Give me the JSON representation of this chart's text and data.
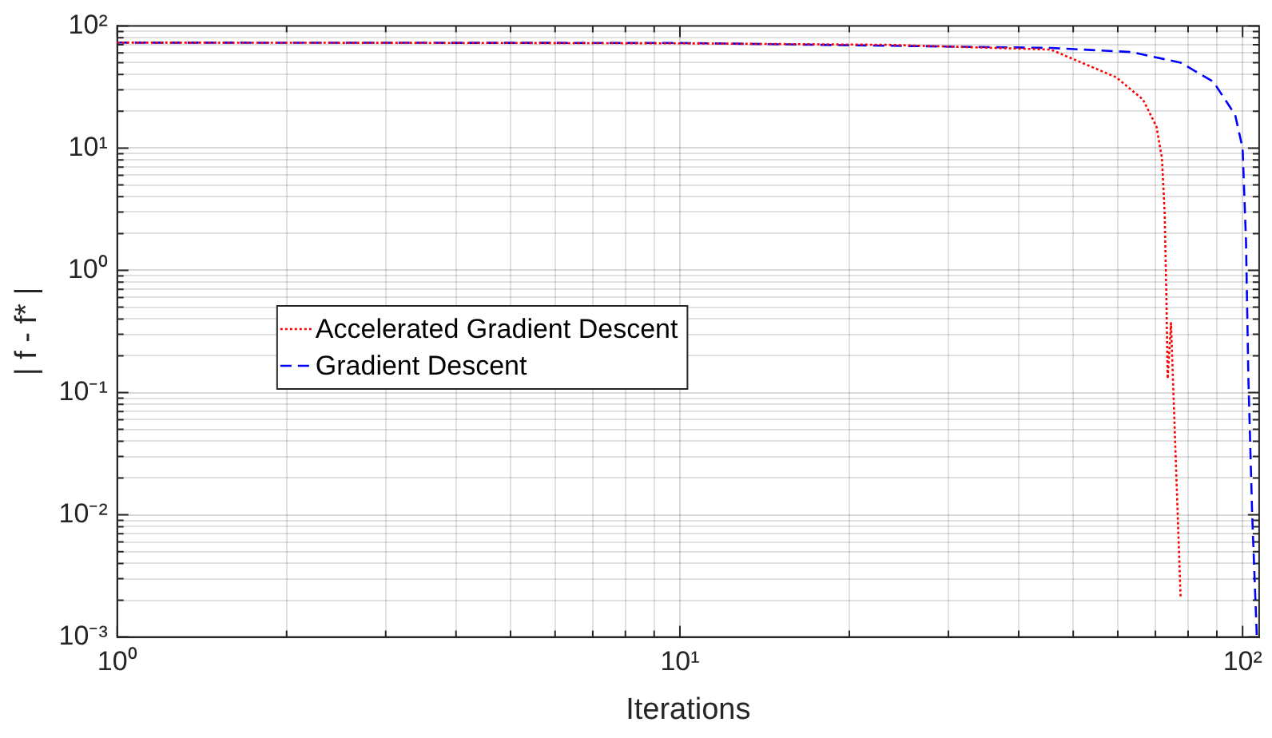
{
  "chart_data": {
    "type": "line",
    "xlabel": "Iterations",
    "ylabel": "| f - f* |",
    "log": "xy",
    "grid": true,
    "legend": "center",
    "marker": "none",
    "xlim": [
      1,
      107
    ],
    "xticks": [
      {
        "value": 1,
        "label": "10⁰"
      },
      {
        "value": 2,
        "label": null
      },
      {
        "value": 3,
        "label": null
      },
      {
        "value": 4,
        "label": null
      },
      {
        "value": 5,
        "label": null
      },
      {
        "value": 6,
        "label": null
      },
      {
        "value": 7,
        "label": null
      },
      {
        "value": 8,
        "label": null
      },
      {
        "value": 9,
        "label": null
      },
      {
        "value": 10,
        "label": "10¹"
      },
      {
        "value": 20,
        "label": null
      },
      {
        "value": 30,
        "label": null
      },
      {
        "value": 40,
        "label": null
      },
      {
        "value": 50,
        "label": null
      },
      {
        "value": 60,
        "label": null
      },
      {
        "value": 70,
        "label": null
      },
      {
        "value": 80,
        "label": null
      },
      {
        "value": 90,
        "label": null
      },
      {
        "value": 100,
        "label": "10²"
      }
    ],
    "ylim": [
      0.001,
      100
    ],
    "yticks": [
      {
        "value": 0.001,
        "label": "10⁻³"
      },
      {
        "value": 0.002,
        "label": null
      },
      {
        "value": 0.003,
        "label": null
      },
      {
        "value": 0.004,
        "label": null
      },
      {
        "value": 0.005,
        "label": null
      },
      {
        "value": 0.006,
        "label": null
      },
      {
        "value": 0.007,
        "label": null
      },
      {
        "value": 0.008,
        "label": null
      },
      {
        "value": 0.009,
        "label": null
      },
      {
        "value": 0.01,
        "label": "10⁻²"
      },
      {
        "value": 0.02,
        "label": null
      },
      {
        "value": 0.03,
        "label": null
      },
      {
        "value": 0.04,
        "label": null
      },
      {
        "value": 0.05,
        "label": null
      },
      {
        "value": 0.06,
        "label": null
      },
      {
        "value": 0.07,
        "label": null
      },
      {
        "value": 0.08,
        "label": null
      },
      {
        "value": 0.09,
        "label": null
      },
      {
        "value": 0.1,
        "label": "10⁻¹"
      },
      {
        "value": 0.2,
        "label": null
      },
      {
        "value": 0.3,
        "label": null
      },
      {
        "value": 0.4,
        "label": null
      },
      {
        "value": 0.5,
        "label": null
      },
      {
        "value": 0.6,
        "label": null
      },
      {
        "value": 0.7,
        "label": null
      },
      {
        "value": 0.8,
        "label": null
      },
      {
        "value": 0.9,
        "label": null
      },
      {
        "value": 1,
        "label": "10⁰"
      },
      {
        "value": 2,
        "label": null
      },
      {
        "value": 3,
        "label": null
      },
      {
        "value": 4,
        "label": null
      },
      {
        "value": 5,
        "label": null
      },
      {
        "value": 6,
        "label": null
      },
      {
        "value": 7,
        "label": null
      },
      {
        "value": 8,
        "label": null
      },
      {
        "value": 9,
        "label": null
      },
      {
        "value": 10,
        "label": "10¹"
      },
      {
        "value": 20,
        "label": null
      },
      {
        "value": 30,
        "label": null
      },
      {
        "value": 40,
        "label": null
      },
      {
        "value": 50,
        "label": null
      },
      {
        "value": 60,
        "label": null
      },
      {
        "value": 70,
        "label": null
      },
      {
        "value": 80,
        "label": null
      },
      {
        "value": 90,
        "label": null
      },
      {
        "value": 100,
        "label": "10²"
      }
    ],
    "series": [
      {
        "name": "Accelerated Gradient Descent",
        "color": "#ff0000",
        "line_style": "dotted",
        "x": [
          1,
          5,
          10,
          23.5,
          45.6,
          59.6,
          66.5,
          70.3,
          71.9,
          72.7,
          73.2,
          73.6,
          74.6,
          77.6
        ],
        "values": [
          73,
          72.5,
          72,
          70,
          64,
          38,
          25,
          15,
          8.2,
          2.9,
          0.63,
          0.13,
          0.37,
          0.0021
        ]
      },
      {
        "name": "Gradient Descent",
        "color": "#0000ff",
        "line_style": "dashed",
        "x": [
          1,
          10,
          45.6,
          63.6,
          77.6,
          88.7,
          97,
          100,
          101.4,
          102.4,
          104,
          106
        ],
        "values": [
          73,
          72.5,
          66,
          61,
          50,
          35,
          18.7,
          10,
          1.75,
          0.13,
          0.01,
          0.001
        ]
      }
    ]
  }
}
